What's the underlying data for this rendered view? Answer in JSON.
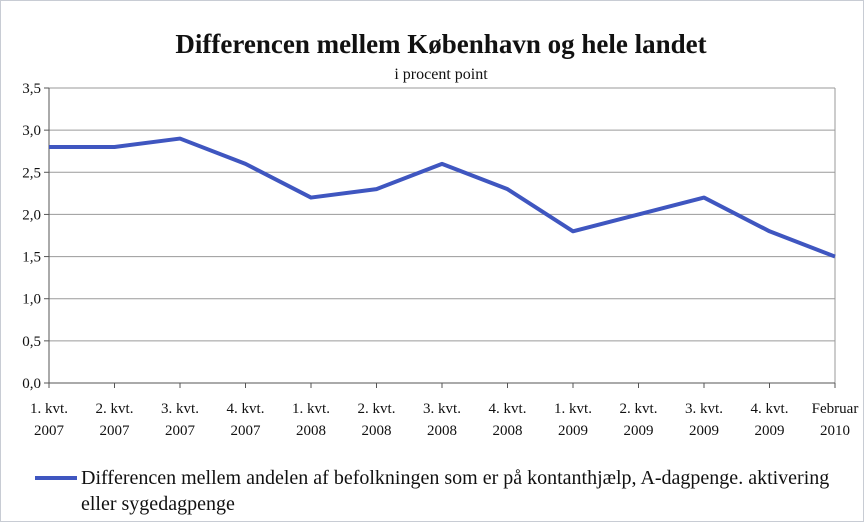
{
  "chart_data": {
    "type": "line",
    "title": "Differencen mellem København og hele landet",
    "subtitle": "i procent point",
    "categories": [
      "1. kvt. 2007",
      "2. kvt. 2007",
      "3. kvt. 2007",
      "4. kvt. 2007",
      "1. kvt. 2008",
      "2. kvt. 2008",
      "3. kvt. 2008",
      "4. kvt. 2008",
      "1. kvt. 2009",
      "2. kvt. 2009",
      "3. kvt. 2009",
      "4. kvt. 2009",
      "Februar 2010"
    ],
    "series": [
      {
        "name": "Differencen mellem andelen af befolkningen som er på kontanthjælp, A-dagpenge. aktivering eller sygedagpenge",
        "color": "#3f56c0",
        "values": [
          2.8,
          2.8,
          2.9,
          2.6,
          2.2,
          2.3,
          2.6,
          2.3,
          1.8,
          2.0,
          2.2,
          1.8,
          1.5
        ]
      }
    ],
    "ylim": [
      0,
      3.5
    ],
    "yticks": [
      {
        "value": 0,
        "label": "0,0"
      },
      {
        "value": 0.5,
        "label": "0,5"
      },
      {
        "value": 1,
        "label": "1,0"
      },
      {
        "value": 1.5,
        "label": "1,5"
      },
      {
        "value": 2,
        "label": "2,0"
      },
      {
        "value": 2.5,
        "label": "2,5"
      },
      {
        "value": 3,
        "label": "3,0"
      },
      {
        "value": 3.5,
        "label": "3,5"
      }
    ],
    "grid": true
  }
}
